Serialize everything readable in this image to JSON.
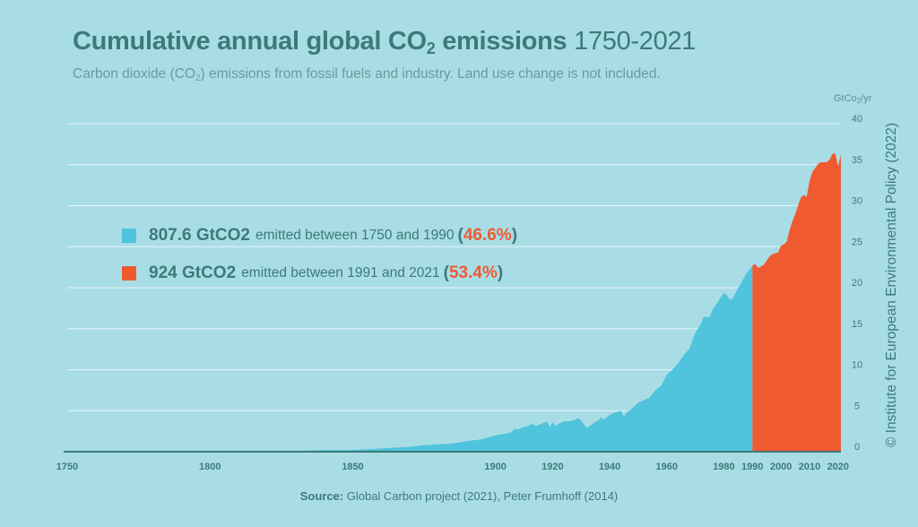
{
  "title": {
    "bold_pre": "Cumulative annual global CO",
    "bold_sub": "2",
    "bold_post": " emissions",
    "range": " 1750-2021"
  },
  "subtitle": {
    "pre": "Carbon dioxide (CO",
    "sub": "2",
    "post": ") emissions from fossil fuels and industry. Land use change is not included."
  },
  "unit": {
    "pre": "GtCo",
    "sub": "2",
    "post": "/yr"
  },
  "credit": "© Institute for European Environmental Policy (2022)",
  "source": {
    "label": "Source:",
    "text": " Global Carbon project (2021), Peter Frumhoff (2014)"
  },
  "legend": [
    {
      "amount": "807.6 GtCO2",
      "desc": "emitted between 1750 and 1990",
      "pct": "46.6%",
      "color": "#4fc4dc"
    },
    {
      "amount": "924 GtCO2",
      "desc": "emitted between 1991 and 2021",
      "pct": "53.4%",
      "color": "#f05a30"
    }
  ],
  "colors": {
    "pre1991": "#4fc4dc",
    "post1990": "#f05a30",
    "text": "#3d7a78",
    "grid": "#e6f5f7",
    "axis": "#3d7a78",
    "pct": "#f05a30"
  },
  "chart_data": {
    "type": "area",
    "xlabel": "",
    "ylabel": "GtCo2/yr",
    "xlim": [
      1750,
      2021
    ],
    "ylim": [
      0,
      40
    ],
    "x_ticks": [
      1750,
      1800,
      1850,
      1900,
      1920,
      1940,
      1960,
      1980,
      1990,
      2000,
      2010,
      2020
    ],
    "y_ticks": [
      0,
      5,
      10,
      15,
      20,
      25,
      30,
      35,
      40
    ],
    "grid": true,
    "split_year": 1990,
    "series": [
      {
        "values_x": [
          1750,
          1800,
          1820,
          1830,
          1840,
          1850,
          1855,
          1860,
          1865,
          1870,
          1875,
          1880,
          1885,
          1890,
          1895,
          1900,
          1905,
          1907,
          1908,
          1910,
          1912,
          1913,
          1914,
          1916,
          1918,
          1919,
          1920,
          1921,
          1922,
          1924,
          1926,
          1928,
          1929,
          1930,
          1932,
          1934,
          1936,
          1937,
          1938,
          1940,
          1942,
          1944,
          1945,
          1946,
          1948,
          1950,
          1952,
          1954,
          1956,
          1958,
          1960,
          1962,
          1964,
          1966,
          1968,
          1970,
          1972,
          1973,
          1974,
          1975,
          1976,
          1977,
          1978,
          1979,
          1980,
          1981,
          1982,
          1983,
          1984,
          1985,
          1986,
          1987,
          1988,
          1989,
          1990,
          1991,
          1992,
          1993,
          1994,
          1995,
          1996,
          1997,
          1998,
          1999,
          2000,
          2001,
          2002,
          2003,
          2004,
          2005,
          2006,
          2007,
          2008,
          2009,
          2010,
          2011,
          2012,
          2013,
          2014,
          2015,
          2016,
          2017,
          2018,
          2019,
          2020,
          2021
        ],
        "values_y": [
          0.01,
          0.03,
          0.05,
          0.1,
          0.2,
          0.2,
          0.3,
          0.4,
          0.5,
          0.6,
          0.8,
          0.9,
          1.0,
          1.3,
          1.5,
          2.0,
          2.3,
          2.8,
          2.7,
          3.0,
          3.2,
          3.5,
          3.1,
          3.4,
          3.7,
          3.0,
          3.6,
          3.1,
          3.4,
          3.7,
          3.7,
          3.9,
          4.1,
          3.8,
          2.9,
          3.4,
          3.8,
          4.2,
          3.9,
          4.5,
          4.8,
          5.0,
          4.3,
          4.8,
          5.3,
          6.0,
          6.3,
          6.6,
          7.5,
          8.0,
          9.4,
          10.0,
          10.8,
          11.8,
          12.6,
          14.5,
          15.6,
          16.5,
          16.4,
          16.4,
          17.3,
          17.8,
          18.3,
          18.9,
          19.4,
          19.1,
          18.6,
          18.6,
          19.3,
          20.0,
          20.5,
          21.2,
          21.8,
          22.2,
          22.7,
          22.9,
          22.4,
          22.6,
          22.8,
          23.3,
          23.8,
          24.1,
          24.2,
          24.3,
          25.1,
          25.3,
          25.6,
          27.0,
          28.1,
          29.0,
          30.0,
          31.0,
          31.3,
          31.1,
          33.0,
          34.1,
          34.6,
          35.1,
          35.3,
          35.3,
          35.3,
          35.6,
          36.3,
          36.4,
          34.8,
          36.2
        ]
      }
    ]
  }
}
